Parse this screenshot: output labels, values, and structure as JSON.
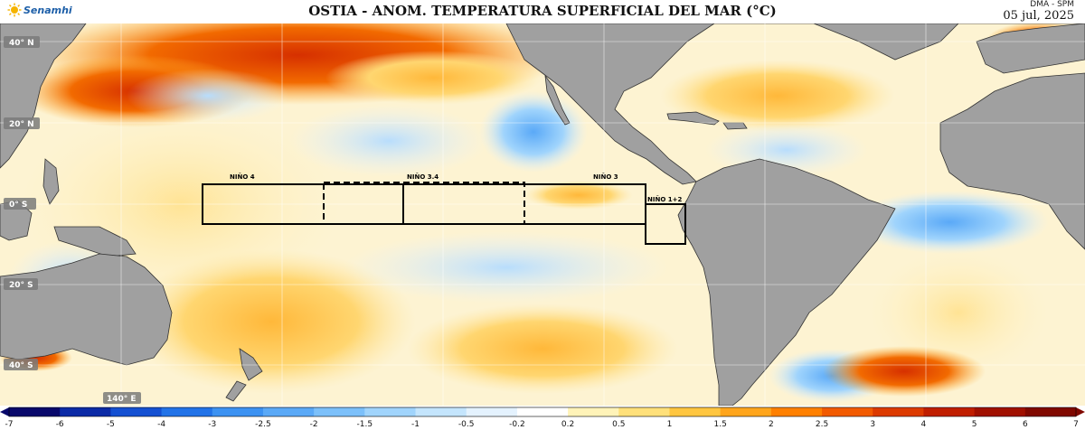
{
  "header": {
    "logo_text": "Senamhi",
    "title": "OSTIA - ANOM. TEMPERATURA SUPERFICIAL DEL MAR (°C)",
    "org": "DMA - SPM",
    "date": "05 jul, 2025"
  },
  "map": {
    "lat_labels": [
      "40° N",
      "20° N",
      "0° S",
      "20° S",
      "40° S"
    ],
    "lon_labels": [
      "140° E"
    ],
    "regions": [
      {
        "name": "NIÑO 4",
        "label": "NIÑO 4"
      },
      {
        "name": "NIÑO 3.4",
        "label": "NIÑO 3.4"
      },
      {
        "name": "NIÑO 3",
        "label": "NIÑO 3"
      },
      {
        "name": "NIÑO 1+2",
        "label": "NIÑO 1+2"
      }
    ],
    "colors": {
      "land": "#a0a0a0",
      "ocean_neutral": "#fffce8",
      "land_edge": "#333333"
    }
  },
  "colorbar": {
    "ticks": [
      "-7",
      "-6",
      "-5",
      "-4",
      "-3",
      "-2.5",
      "-2",
      "-1.5",
      "-1",
      "-0.5",
      "-0.2",
      "0.2",
      "0.5",
      "1",
      "1.5",
      "2",
      "2.5",
      "3",
      "4",
      "5",
      "6",
      "7"
    ],
    "colors": [
      "#08086b",
      "#0b2aa6",
      "#1450d2",
      "#2273e8",
      "#3c92f2",
      "#5aa9f7",
      "#7cc0fa",
      "#a0d4fc",
      "#c4e5fd",
      "#e4f2fe",
      "#ffffff",
      "#fff3b8",
      "#ffe07a",
      "#ffc640",
      "#ffa51c",
      "#ff8000",
      "#f25a00",
      "#dc3a00",
      "#c01e00",
      "#a01000",
      "#800800"
    ]
  }
}
